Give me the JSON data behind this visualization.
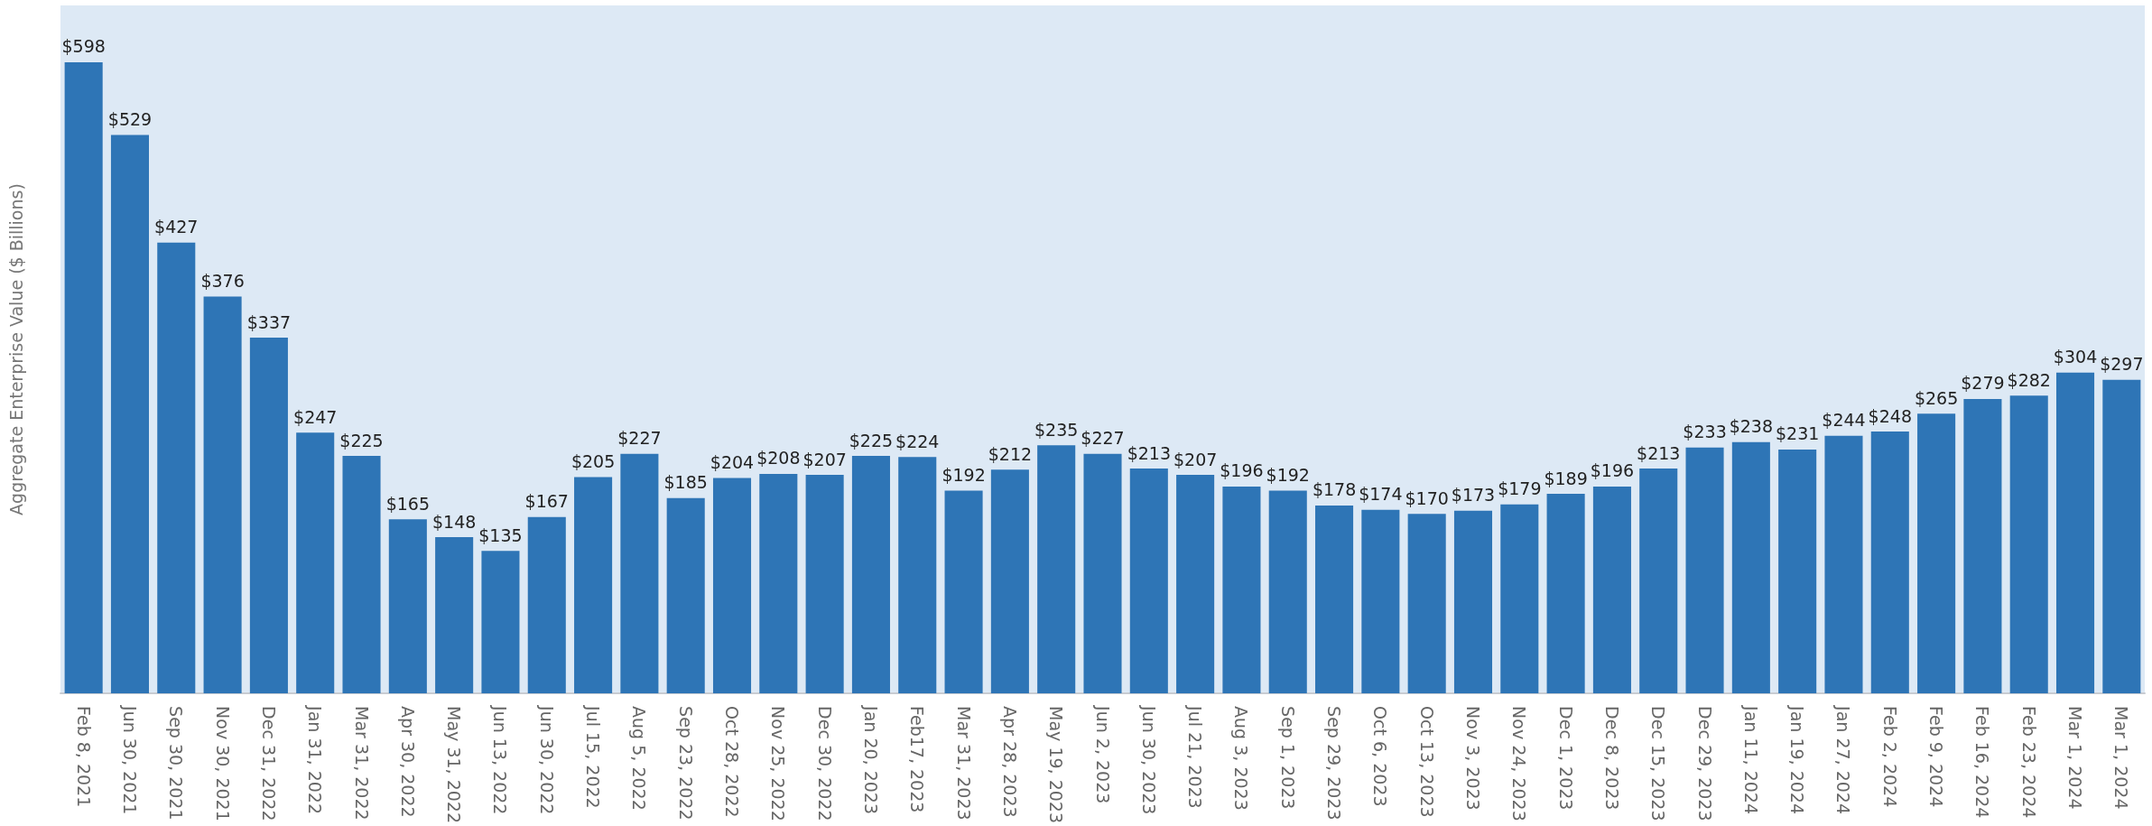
{
  "chart_data": {
    "type": "bar",
    "ylabel": "Aggregate Enterprise Value ($ Billions)",
    "categories": [
      "Feb 8, 2021",
      "Jun 30, 2021",
      "Sep 30, 2021",
      "Nov 30, 2021",
      "Dec 31, 2022",
      "Jan 31, 2022",
      "Mar 31, 2022",
      "Apr 30, 2022",
      "May 31, 2022",
      "Jun 13, 2022",
      "Jun 30, 2022",
      "Jul 15, 2022",
      "Aug 5, 2022",
      "Sep 23, 2022",
      "Oct 28, 2022",
      "Nov 25, 2022",
      "Dec 30, 2022",
      "Jan 20, 2023",
      "Feb17, 2023",
      "Mar 31, 2023",
      "Apr 28, 2023",
      "May 19, 2023",
      "Jun 2, 2023",
      "Jun 30, 2023",
      "Jul 21, 2023",
      "Aug 3, 2023",
      "Sep 1, 2023",
      "Sep 29, 2023",
      "Oct 6, 2023",
      "Oct 13, 2023",
      "Nov 3, 2023",
      "Nov 24, 2023",
      "Dec 1, 2023",
      "Dec 8, 2023",
      "Dec 15, 2023",
      "Dec 29, 2023",
      "Jan 11, 2024",
      "Jan 19, 2024",
      "Jan 27, 2024",
      "Feb 2, 2024",
      "Feb 9, 2024",
      "Feb 16, 2024",
      "Feb 23, 2024",
      "Mar 1, 2024",
      "Mar 1, 2024"
    ],
    "values": [
      598,
      529,
      427,
      376,
      337,
      247,
      225,
      165,
      148,
      135,
      167,
      205,
      227,
      185,
      204,
      208,
      207,
      225,
      224,
      192,
      212,
      235,
      227,
      213,
      207,
      196,
      192,
      178,
      174,
      170,
      173,
      179,
      189,
      196,
      213,
      233,
      238,
      231,
      244,
      248,
      265,
      279,
      282,
      304,
      297
    ],
    "value_labels": [
      "$598",
      "$529",
      "$427",
      "$376",
      "$337",
      "$247",
      "$225",
      "$165",
      "$148",
      "$135",
      "$167",
      "$205",
      "$227",
      "$185",
      "$204",
      "$208",
      "$207",
      "$225",
      "$224",
      "$192",
      "$212",
      "$235",
      "$227",
      "$213",
      "$207",
      "$196",
      "$192",
      "$178",
      "$174",
      "$170",
      "$173",
      "$179",
      "$189",
      "$196",
      "$213",
      "$233",
      "$238",
      "$231",
      "$244",
      "$248",
      "$265",
      "$279",
      "$282",
      "$304",
      "$297"
    ],
    "color": "#2e75b6",
    "grid": false,
    "tick_labels": "x"
  }
}
